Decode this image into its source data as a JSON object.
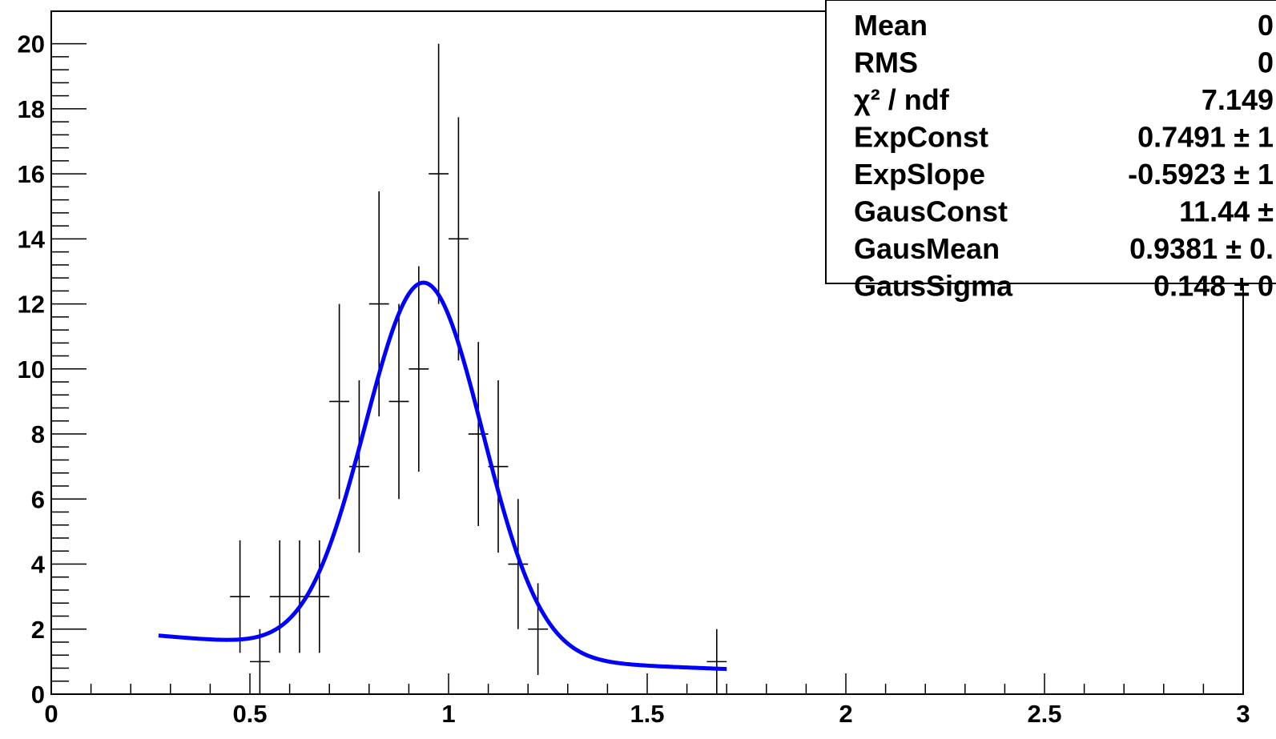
{
  "chart_data": {
    "type": "scatter",
    "title": "",
    "xlabel": "",
    "ylabel": "",
    "xlim": [
      0,
      3
    ],
    "ylim": [
      0,
      21
    ],
    "grid": false,
    "xticks": [
      "0",
      "0.5",
      "1",
      "1.5",
      "2",
      "2.5",
      "3"
    ],
    "yticks": [
      "0",
      "2",
      "4",
      "6",
      "8",
      "10",
      "12",
      "14",
      "16",
      "18",
      "20"
    ],
    "bin_width": 0.05,
    "points": [
      {
        "x": 0.475,
        "y": 3,
        "err": 1.73
      },
      {
        "x": 0.525,
        "y": 1,
        "err": 1.0
      },
      {
        "x": 0.575,
        "y": 3,
        "err": 1.73
      },
      {
        "x": 0.625,
        "y": 3,
        "err": 1.73
      },
      {
        "x": 0.675,
        "y": 3,
        "err": 1.73
      },
      {
        "x": 0.725,
        "y": 9,
        "err": 3.0
      },
      {
        "x": 0.775,
        "y": 7,
        "err": 2.65
      },
      {
        "x": 0.825,
        "y": 12,
        "err": 3.46
      },
      {
        "x": 0.875,
        "y": 9,
        "err": 3.0
      },
      {
        "x": 0.925,
        "y": 10,
        "err": 3.16
      },
      {
        "x": 0.975,
        "y": 16,
        "err": 4.0
      },
      {
        "x": 1.025,
        "y": 14,
        "err": 3.74
      },
      {
        "x": 1.075,
        "y": 8,
        "err": 2.83
      },
      {
        "x": 1.125,
        "y": 7,
        "err": 2.65
      },
      {
        "x": 1.175,
        "y": 4,
        "err": 2.0
      },
      {
        "x": 1.225,
        "y": 2,
        "err": 1.41
      },
      {
        "x": 1.675,
        "y": 1,
        "err": 1.0
      }
    ],
    "fit": {
      "color": "#0000ff",
      "x_range": [
        0.27,
        1.7
      ],
      "ExpConst": 0.7491,
      "ExpSlope": -0.5923,
      "GausConst": 11.44,
      "GausMean": 0.9381,
      "GausSigma": 0.148
    },
    "stats_box": [
      {
        "label": "Mean",
        "value": "0"
      },
      {
        "label": "RMS",
        "value": "0"
      },
      {
        "label": "χ² / ndf",
        "value": "7.149"
      },
      {
        "label": "ExpConst",
        "value": "0.7491 ± 1"
      },
      {
        "label": "ExpSlope",
        "value": "-0.5923 ± 1"
      },
      {
        "label": "GausConst",
        "value": "11.44 ±"
      },
      {
        "label": "GausMean",
        "value": "0.9381 ± 0."
      },
      {
        "label": "GausSigma",
        "value": "0.148 ± 0"
      }
    ]
  }
}
